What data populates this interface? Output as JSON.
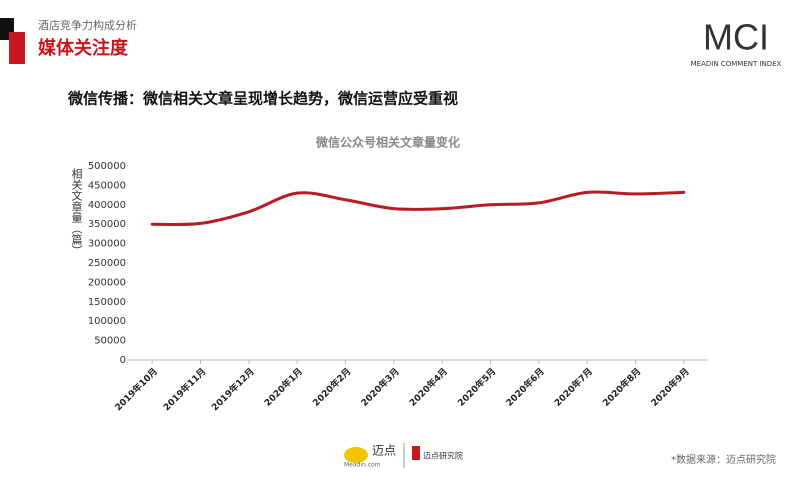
{
  "header": {
    "section": "酒店竞争力构成分析",
    "title": "媒体关注度",
    "subtitle": "微信传播：微信相关文章呈现增长趋势，微信运营应受重视"
  },
  "logo": {
    "text": "MCI",
    "tagline": "MEADIN COMMENT INDEX"
  },
  "footer": {
    "brand": "迈点",
    "domain": "Meadin.com",
    "institute": "迈点研究院",
    "source": "*数据来源：迈点研究院"
  },
  "chart_data": {
    "type": "line",
    "title": "微信公众号相关文章量变化",
    "y_label": "相关文章量（篇）",
    "categories": [
      "2019年10月",
      "2019年11月",
      "2019年12月",
      "2020年1月",
      "2020年2月",
      "2020年3月",
      "2020年4月",
      "2020年5月",
      "2020年6月",
      "2020年7月",
      "2020年8月",
      "2020年9月"
    ],
    "values": [
      350000,
      352000,
      382000,
      430000,
      413000,
      390000,
      390000,
      400000,
      405000,
      432000,
      428000,
      432000
    ],
    "color": "#b81c22",
    "ylim": [
      0,
      500000
    ],
    "yticks": [
      0,
      50000,
      100000,
      150000,
      200000,
      250000,
      300000,
      350000,
      400000,
      450000,
      500000
    ]
  }
}
